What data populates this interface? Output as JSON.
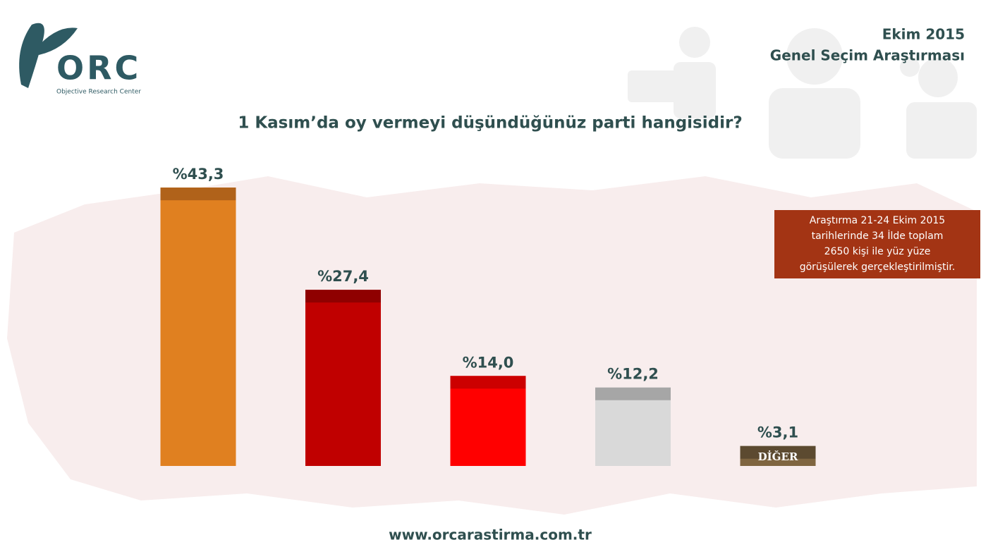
{
  "logo": {
    "name": "ORC",
    "subtitle": "Objective Research Center"
  },
  "header": {
    "date": "Ekim 2015",
    "title": "Genel Seçim Araştırması"
  },
  "note": [
    "Araştırma 21-24 Ekim 2015",
    "tarihlerinde 34 İlde toplam",
    "2650 kişi ile yüz yüze",
    "görüşülerek gerçekleştirilmiştir."
  ],
  "footer": "www.orcarastirma.com.tr",
  "chart_data": {
    "type": "bar",
    "title": "1 Kasım’da oy vermeyi düşündüğünüz parti hangisidir?",
    "categories": [
      null,
      null,
      null,
      null,
      "DİĞER"
    ],
    "values": [
      43.3,
      27.4,
      14.0,
      12.2,
      3.1
    ],
    "value_labels": [
      "%43,3",
      "%27,4",
      "%14,0",
      "%12,2",
      "%3,1"
    ],
    "colors": [
      "#e08020",
      "#c00000",
      "#ff0000",
      "#d9d9d9",
      "#7f6540"
    ],
    "cap_colors": [
      "#b0621a",
      "#8f0000",
      "#cc0000",
      "#a6a6a6",
      "#5c4a30"
    ]
  }
}
